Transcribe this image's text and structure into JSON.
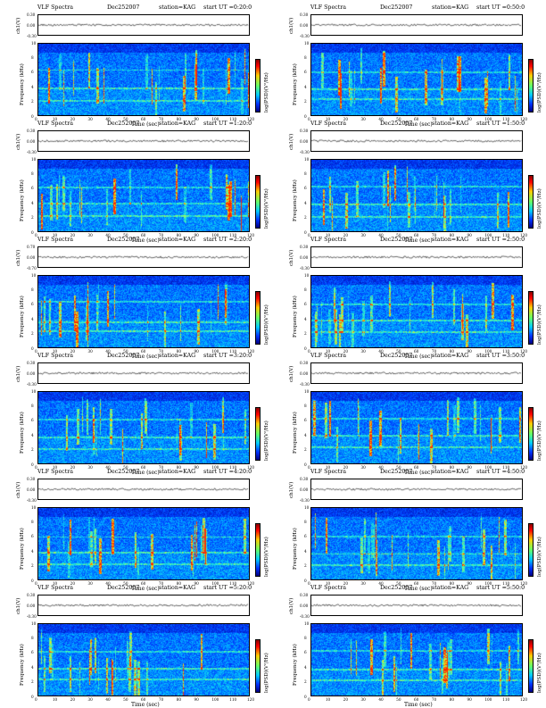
{
  "colors": {
    "background": "#ffffff",
    "spectrogram_dark": "#000090",
    "spectrogram_mid": "#0040ff",
    "spectrogram_hot": "#40ffc0",
    "spectrogram_peak": "#ffd000"
  },
  "chart_data": [
    {
      "type": "heatmap",
      "header": {
        "prefix": "VLF Spectra",
        "date": "Dec252007",
        "station": "station=KAG",
        "start": "start UT =0:20:0"
      },
      "ts_label": "ch1(V)",
      "ts_ticks": [
        "0.30",
        "0.00",
        "-0.30"
      ],
      "ylabel": "Frequency (kHz)",
      "y_ticks": [
        "0",
        "2",
        "4",
        "6",
        "8",
        "10"
      ],
      "ylim": [
        0,
        10
      ],
      "xlabel": "Time (sec)",
      "x_ticks": [
        "0",
        "10",
        "20",
        "30",
        "40",
        "50",
        "60",
        "70",
        "80",
        "90",
        "100",
        "110",
        "120"
      ],
      "xlim": [
        0,
        120
      ],
      "colorbar_label": "log(PSD)(V²/Hz)"
    },
    {
      "type": "heatmap",
      "header": {
        "prefix": "VLF Spectra",
        "date": "Dec252007",
        "station": "station=KAG",
        "start": "start UT =0:50:0"
      },
      "ts_label": "ch1(V)",
      "ts_ticks": [
        "0.30",
        "0.00",
        "-0.30"
      ],
      "ylabel": "Frequency (kHz)",
      "y_ticks": [
        "0",
        "2",
        "4",
        "6",
        "8",
        "10"
      ],
      "ylim": [
        0,
        10
      ],
      "xlabel": "Time (sec)",
      "x_ticks": [
        "0",
        "10",
        "20",
        "30",
        "40",
        "50",
        "60",
        "70",
        "80",
        "90",
        "100",
        "110",
        "120"
      ],
      "xlim": [
        0,
        120
      ],
      "colorbar_label": "log(PSD)(V²/Hz)"
    },
    {
      "type": "heatmap",
      "header": {
        "prefix": "VLF Spectra",
        "date": "Dec252007",
        "station": "station=KAG",
        "start": "start UT =1:20:0"
      },
      "ts_label": "ch1(V)",
      "ts_ticks": [
        "0.30",
        "0.00",
        "-0.30"
      ],
      "ylabel": "Frequency (kHz)",
      "y_ticks": [
        "0",
        "2",
        "4",
        "6",
        "8",
        "10"
      ],
      "ylim": [
        0,
        10
      ],
      "xlabel": "Time (sec)",
      "x_ticks": [
        "0",
        "10",
        "20",
        "30",
        "40",
        "50",
        "60",
        "70",
        "80",
        "90",
        "100",
        "110",
        "120"
      ],
      "xlim": [
        0,
        120
      ],
      "colorbar_label": "log(PSD)(V²/Hz)"
    },
    {
      "type": "heatmap",
      "header": {
        "prefix": "VLF Spectra",
        "date": "Dec252007",
        "station": "station=KAG",
        "start": "start UT =1:50:0"
      },
      "ts_label": "ch1(V)",
      "ts_ticks": [
        "0.30",
        "0.00",
        "-0.30"
      ],
      "ylabel": "Frequency (kHz)",
      "y_ticks": [
        "0",
        "2",
        "4",
        "6",
        "8",
        "10"
      ],
      "ylim": [
        0,
        10
      ],
      "xlabel": "Time (sec)",
      "x_ticks": [
        "0",
        "10",
        "20",
        "30",
        "40",
        "50",
        "60",
        "70",
        "80",
        "90",
        "100",
        "110",
        "120"
      ],
      "xlim": [
        0,
        120
      ],
      "colorbar_label": "log(PSD)(V²/Hz)"
    },
    {
      "type": "heatmap",
      "header": {
        "prefix": "VLF Spectra",
        "date": "Dec252007",
        "station": "station=KAG",
        "start": "start UT =2:20:0"
      },
      "ts_label": "ch1(V)",
      "ts_ticks": [
        "0.70",
        "0.00",
        "-0.70"
      ],
      "ylabel": "Frequency (kHz)",
      "y_ticks": [
        "0",
        "2",
        "4",
        "6",
        "8",
        "10"
      ],
      "ylim": [
        0,
        10
      ],
      "xlabel": "Time (sec)",
      "x_ticks": [
        "0",
        "10",
        "20",
        "30",
        "40",
        "50",
        "60",
        "70",
        "80",
        "90",
        "100",
        "110",
        "120"
      ],
      "xlim": [
        0,
        120
      ],
      "colorbar_label": "log(PSD)(V²/Hz)"
    },
    {
      "type": "heatmap",
      "header": {
        "prefix": "VLF Spectra",
        "date": "Dec252007",
        "station": "station=KAG",
        "start": "start UT =2:50:0"
      },
      "ts_label": "ch1(V)",
      "ts_ticks": [
        "0.30",
        "0.00",
        "-0.30"
      ],
      "ylabel": "Frequency (kHz)",
      "y_ticks": [
        "0",
        "2",
        "4",
        "6",
        "8",
        "10"
      ],
      "ylim": [
        0,
        10
      ],
      "xlabel": "Time (sec)",
      "x_ticks": [
        "0",
        "10",
        "20",
        "30",
        "40",
        "50",
        "60",
        "70",
        "80",
        "90",
        "100",
        "110",
        "120"
      ],
      "xlim": [
        0,
        120
      ],
      "colorbar_label": "log(PSD)(V²/Hz)"
    },
    {
      "type": "heatmap",
      "header": {
        "prefix": "VLF Spectra",
        "date": "Dec252007",
        "station": "station=KAG",
        "start": "start UT =3:20:0"
      },
      "ts_label": "ch1(V)",
      "ts_ticks": [
        "0.30",
        "0.00",
        "-0.30"
      ],
      "ylabel": "Frequency (kHz)",
      "y_ticks": [
        "0",
        "2",
        "4",
        "6",
        "8",
        "10"
      ],
      "ylim": [
        0,
        10
      ],
      "xlabel": "Time (sec)",
      "x_ticks": [
        "0",
        "10",
        "20",
        "30",
        "40",
        "50",
        "60",
        "70",
        "80",
        "90",
        "100",
        "110",
        "120"
      ],
      "xlim": [
        0,
        120
      ],
      "colorbar_label": "log(PSD)(V²/Hz)"
    },
    {
      "type": "heatmap",
      "header": {
        "prefix": "VLF Spectra",
        "date": "Dec252007",
        "station": "station=KAG",
        "start": "start UT =3:50:0"
      },
      "ts_label": "ch1(V)",
      "ts_ticks": [
        "0.30",
        "0.00",
        "-0.30"
      ],
      "ylabel": "Frequency (kHz)",
      "y_ticks": [
        "0",
        "2",
        "4",
        "6",
        "8",
        "10"
      ],
      "ylim": [
        0,
        10
      ],
      "xlabel": "Time (sec)",
      "x_ticks": [
        "0",
        "10",
        "20",
        "30",
        "40",
        "50",
        "60",
        "70",
        "80",
        "90",
        "100",
        "110",
        "120"
      ],
      "xlim": [
        0,
        120
      ],
      "colorbar_label": "log(PSD)(V²/Hz)"
    },
    {
      "type": "heatmap",
      "header": {
        "prefix": "VLF Spectra",
        "date": "Dec252007",
        "station": "station=KAG",
        "start": "start UT =4:20:0"
      },
      "ts_label": "ch1(V)",
      "ts_ticks": [
        "0.30",
        "0.00",
        "-0.30"
      ],
      "ylabel": "Frequency (kHz)",
      "y_ticks": [
        "0",
        "2",
        "4",
        "6",
        "8",
        "10"
      ],
      "ylim": [
        0,
        10
      ],
      "xlabel": "Time (sec)",
      "x_ticks": [
        "0",
        "10",
        "20",
        "30",
        "40",
        "50",
        "60",
        "70",
        "80",
        "90",
        "100",
        "110",
        "120"
      ],
      "xlim": [
        0,
        120
      ],
      "colorbar_label": "log(PSD)(V²/Hz)"
    },
    {
      "type": "heatmap",
      "header": {
        "prefix": "VLF Spectra",
        "date": "Dec252007",
        "station": "station=KAG",
        "start": "start UT =4:50:0"
      },
      "ts_label": "ch1(V)",
      "ts_ticks": [
        "0.30",
        "0.00",
        "-0.30"
      ],
      "ylabel": "Frequency (kHz)",
      "y_ticks": [
        "0",
        "2",
        "4",
        "6",
        "8",
        "10"
      ],
      "ylim": [
        0,
        10
      ],
      "xlabel": "Time (sec)",
      "x_ticks": [
        "0",
        "10",
        "20",
        "30",
        "40",
        "50",
        "60",
        "70",
        "80",
        "90",
        "100",
        "110",
        "120"
      ],
      "xlim": [
        0,
        120
      ],
      "colorbar_label": "log(PSD)(V²/Hz)"
    },
    {
      "type": "heatmap",
      "header": {
        "prefix": "VLF Spectra",
        "date": "Dec252007",
        "station": "station=KAG",
        "start": "start UT =5:20:0"
      },
      "ts_label": "ch1(V)",
      "ts_ticks": [
        "0.30",
        "0.00",
        "-0.30"
      ],
      "ylabel": "Frequency (kHz)",
      "y_ticks": [
        "0",
        "2",
        "4",
        "6",
        "8",
        "10"
      ],
      "ylim": [
        0,
        10
      ],
      "xlabel": "Time (sec)",
      "x_ticks": [
        "0",
        "10",
        "20",
        "30",
        "40",
        "50",
        "60",
        "70",
        "80",
        "90",
        "100",
        "110",
        "120"
      ],
      "xlim": [
        0,
        120
      ],
      "colorbar_label": "log(PSD)(V²/Hz)"
    },
    {
      "type": "heatmap",
      "header": {
        "prefix": "VLF Spectra",
        "date": "Dec252007",
        "station": "station=KAG",
        "start": "start UT =5:50:0"
      },
      "ts_label": "ch1(V)",
      "ts_ticks": [
        "0.30",
        "0.00",
        "-0.30"
      ],
      "ylabel": "Frequency (kHz)",
      "y_ticks": [
        "0",
        "2",
        "4",
        "6",
        "8",
        "10"
      ],
      "ylim": [
        0,
        10
      ],
      "xlabel": "Time (sec)",
      "x_ticks": [
        "0",
        "10",
        "20",
        "30",
        "40",
        "50",
        "60",
        "70",
        "80",
        "90",
        "100",
        "110",
        "120"
      ],
      "xlim": [
        0,
        120
      ],
      "colorbar_label": "log(PSD)(V²/Hz)"
    }
  ]
}
